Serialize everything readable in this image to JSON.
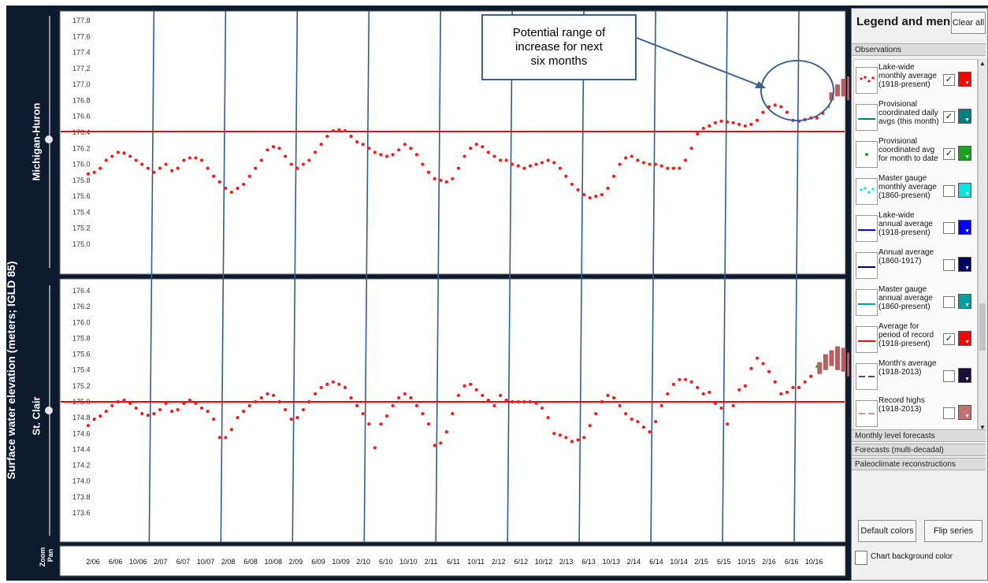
{
  "y_axis_label": "Surface water elevation (meters; IGLD 85)",
  "panels": [
    {
      "label": "Michigan-Huron",
      "average_level": 176.41
    },
    {
      "label": "St. Clair",
      "average_level": 175.0
    }
  ],
  "zoom_label": "Zoom",
  "pan_label": "Pan",
  "callout": {
    "lines": [
      "Potential range of",
      "increase for next",
      "six months"
    ]
  },
  "colors": {
    "observations": "#ff1a1a",
    "forecast": "#b86060",
    "average_line": "#ff0000",
    "year_lines": "#2f5e9e",
    "callout_border": "#3a5f93",
    "app_background": "#0e1a2e"
  },
  "legend": {
    "title": "Legend and menu",
    "clear_label": "Clear all",
    "observations_header": "Observations",
    "items": [
      {
        "label": "Lake-wide monthly average (1918-present)",
        "checked": true,
        "color": "#ff0000",
        "icon": "dots-icon"
      },
      {
        "label": "Provisional coordinated daily avgs (this month)",
        "checked": true,
        "color": "#008080",
        "icon": "line-icon"
      },
      {
        "label": "Provisional coordinated avg for month to date",
        "checked": true,
        "color": "#1aa31a",
        "icon": "point-icon"
      },
      {
        "label": "Master gauge monthly average (1860-present)",
        "checked": false,
        "color": "#00e5e5",
        "icon": "dots-icon"
      },
      {
        "label": "Lake-wide annual average (1918-present)",
        "checked": false,
        "color": "#0000ff",
        "icon": "line-icon"
      },
      {
        "label": "Annual average (1860-1917)",
        "checked": false,
        "color": "#000066",
        "icon": "line-icon"
      },
      {
        "label": "Master gauge annual average (1860-present)",
        "checked": false,
        "color": "#00a0a0",
        "icon": "line-icon"
      },
      {
        "label": "Average for period of record (1918-present)",
        "checked": true,
        "color": "#ff0000",
        "icon": "line-icon"
      },
      {
        "label": "Month's average (1918-2013)",
        "checked": false,
        "color": "#1a0f3a",
        "icon": "dash-icon"
      },
      {
        "label": "Record highs (1918-2013)",
        "checked": false,
        "color": "#c67070",
        "icon": "dash-icon"
      }
    ],
    "sections": [
      "Monthly level forecasts",
      "Forecasts (multi-decadal)",
      "Paleoclimate reconstructions"
    ],
    "default_colors_label": "Default colors",
    "flip_series_label": "Flip series",
    "chart_bg_label": "Chart background color"
  },
  "chart_data": [
    {
      "type": "scatter",
      "name": "Michigan-Huron",
      "ylim": [
        174.9,
        177.9
      ],
      "yticks": [
        175.0,
        175.2,
        175.4,
        175.6,
        175.8,
        176.0,
        176.2,
        176.4,
        176.6,
        176.8,
        177.0,
        177.2,
        177.4,
        177.6,
        177.8
      ],
      "average_line": 176.41,
      "x_tick_labels": [
        "2/06",
        "6/06",
        "10/06",
        "2/07",
        "6/07",
        "10/07",
        "2/08",
        "6/08",
        "10/08",
        "2/09",
        "6/09",
        "10/09",
        "2/10",
        "6/10",
        "10/10",
        "2/11",
        "6/11",
        "10/11",
        "2/12",
        "6/12",
        "10/12",
        "2/13",
        "6/13",
        "10/13",
        "2/14",
        "6/14",
        "10/14",
        "2/15",
        "6/15",
        "10/15",
        "2/16",
        "6/16",
        "10/16"
      ],
      "year_boundaries": [
        "2007",
        "2008",
        "2009",
        "2010",
        "2011",
        "2012",
        "2013",
        "2014",
        "2015",
        "2016"
      ],
      "monthly_averages": [
        175.88,
        175.9,
        175.95,
        176.05,
        176.1,
        176.15,
        176.14,
        176.1,
        176.05,
        176.0,
        175.95,
        175.9,
        175.95,
        176.0,
        175.92,
        175.95,
        176.05,
        176.08,
        176.08,
        176.05,
        175.95,
        175.85,
        175.78,
        175.7,
        175.65,
        175.7,
        175.75,
        175.85,
        175.95,
        176.05,
        176.18,
        176.22,
        176.2,
        176.1,
        176.0,
        175.95,
        176.0,
        176.05,
        176.15,
        176.25,
        176.35,
        176.42,
        176.43,
        176.42,
        176.35,
        176.28,
        176.25,
        176.2,
        176.15,
        176.12,
        176.1,
        176.12,
        176.18,
        176.25,
        176.2,
        176.12,
        176.0,
        175.9,
        175.82,
        175.8,
        175.78,
        175.82,
        175.95,
        176.1,
        176.2,
        176.25,
        176.22,
        176.15,
        176.1,
        176.05,
        176.05,
        176.0,
        175.98,
        175.95,
        175.98,
        176.0,
        176.02,
        176.05,
        176.02,
        175.95,
        175.85,
        175.75,
        175.68,
        175.62,
        175.58,
        175.6,
        175.62,
        175.7,
        175.85,
        176.0,
        176.08,
        176.1,
        176.05,
        176.02,
        176.0,
        176.0,
        175.98,
        175.95,
        175.95,
        175.95,
        176.05,
        176.2,
        176.38,
        176.45,
        176.48,
        176.52,
        176.54,
        176.53,
        176.52,
        176.5,
        176.48,
        176.5,
        176.55,
        176.65,
        176.72,
        176.74,
        176.72,
        176.65,
        176.55,
        176.54,
        176.56,
        176.58,
        176.58,
        176.64
      ],
      "provisional_point": 176.73,
      "forecast_ranges": [
        [
          176.8,
          176.9
        ],
        [
          176.85,
          177.0
        ],
        [
          176.85,
          177.07
        ],
        [
          176.8,
          177.1
        ],
        [
          176.75,
          177.1
        ],
        [
          176.7,
          177.07
        ]
      ]
    },
    {
      "type": "scatter",
      "name": "St. Clair",
      "ylim": [
        173.5,
        176.5
      ],
      "yticks": [
        173.6,
        173.8,
        174.0,
        174.2,
        174.4,
        174.6,
        174.8,
        175.0,
        175.2,
        175.4,
        175.6,
        175.8,
        176.0,
        176.2,
        176.4
      ],
      "average_line": 175.0,
      "x_tick_labels": [
        "2/06",
        "6/06",
        "10/06",
        "2/07",
        "6/07",
        "10/07",
        "2/08",
        "6/08",
        "10/08",
        "2/09",
        "6/09",
        "10/09",
        "2/10",
        "6/10",
        "10/10",
        "2/11",
        "6/11",
        "10/11",
        "2/12",
        "6/12",
        "10/12",
        "2/13",
        "6/13",
        "10/13",
        "2/14",
        "6/14",
        "10/14",
        "2/15",
        "6/15",
        "10/15",
        "2/16",
        "6/16",
        "10/16"
      ],
      "year_boundaries": [
        "2007",
        "2008",
        "2009",
        "2010",
        "2011",
        "2012",
        "2013",
        "2014",
        "2015",
        "2016"
      ],
      "monthly_averages": [
        174.7,
        174.78,
        174.82,
        174.88,
        174.95,
        175.0,
        175.02,
        174.98,
        174.92,
        174.85,
        174.83,
        174.85,
        174.9,
        174.98,
        174.88,
        174.9,
        174.98,
        175.02,
        174.98,
        174.92,
        174.88,
        174.78,
        174.55,
        174.55,
        174.65,
        174.8,
        174.88,
        174.95,
        175.0,
        175.05,
        175.1,
        175.08,
        175.0,
        174.9,
        174.78,
        174.8,
        174.9,
        175.0,
        175.1,
        175.18,
        175.22,
        175.25,
        175.22,
        175.18,
        175.05,
        174.95,
        174.85,
        174.72,
        174.42,
        174.72,
        174.82,
        174.95,
        175.05,
        175.1,
        175.05,
        174.95,
        174.85,
        174.72,
        174.45,
        174.48,
        174.62,
        174.85,
        175.08,
        175.2,
        175.22,
        175.15,
        175.08,
        175.02,
        174.95,
        175.08,
        175.02,
        175.0,
        175.0,
        175.0,
        175.0,
        174.98,
        174.92,
        174.8,
        174.6,
        174.58,
        174.55,
        174.5,
        174.52,
        174.55,
        174.7,
        174.85,
        175.0,
        175.08,
        175.05,
        174.95,
        174.85,
        174.78,
        174.75,
        174.68,
        174.62,
        174.75,
        174.95,
        175.1,
        175.22,
        175.28,
        175.28,
        175.25,
        175.18,
        175.1,
        175.12,
        174.98,
        174.92,
        174.72,
        174.95,
        175.15,
        175.2,
        175.42,
        175.55,
        175.48,
        175.38,
        175.25,
        175.1,
        175.12,
        175.18,
        175.18,
        175.25,
        175.32
      ],
      "provisional_point": 175.45,
      "forecast_ranges": [
        [
          175.35,
          175.5
        ],
        [
          175.4,
          175.6
        ],
        [
          175.45,
          175.65
        ],
        [
          175.4,
          175.7
        ],
        [
          175.38,
          175.68
        ],
        [
          175.32,
          175.62
        ]
      ]
    }
  ]
}
